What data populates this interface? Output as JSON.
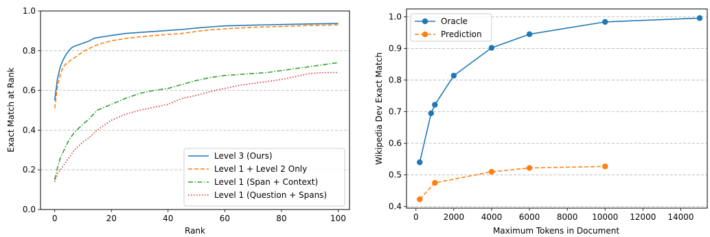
{
  "chart_data": [
    {
      "type": "line",
      "title": "",
      "xlabel": "Rank",
      "ylabel": "Exact Match at Rank",
      "xlim": [
        -5,
        104
      ],
      "ylim": [
        0.0,
        1.0
      ],
      "xticks": [
        0,
        20,
        40,
        60,
        80,
        100
      ],
      "yticks": [
        0.0,
        0.2,
        0.4,
        0.6,
        0.8,
        1.0
      ],
      "xtick_labels": [
        "0",
        "20",
        "40",
        "60",
        "80",
        "100"
      ],
      "ytick_labels": [
        "0.0",
        "0.2",
        "0.4",
        "0.6",
        "0.8",
        "1.0"
      ],
      "grid": "horizontal dashed",
      "legend_position": "lower-right",
      "series": [
        {
          "name": "Level 3 (Ours)",
          "color": "#1f77b4",
          "style": "solid",
          "x": [
            0,
            1,
            2,
            3,
            4,
            5,
            6,
            7,
            8,
            10,
            12,
            14,
            16,
            18,
            20,
            25,
            30,
            35,
            40,
            45,
            50,
            55,
            60,
            70,
            80,
            90,
            100
          ],
          "y": [
            0.55,
            0.66,
            0.72,
            0.755,
            0.78,
            0.8,
            0.815,
            0.823,
            0.828,
            0.838,
            0.848,
            0.863,
            0.868,
            0.872,
            0.877,
            0.887,
            0.892,
            0.897,
            0.902,
            0.907,
            0.914,
            0.92,
            0.925,
            0.929,
            0.932,
            0.935,
            0.937
          ]
        },
        {
          "name": "Level 1 + Level 2 Only",
          "color": "#ff7f0e",
          "style": "dashed",
          "x": [
            0,
            1,
            2,
            3,
            5,
            7,
            10,
            12,
            15,
            20,
            25,
            30,
            35,
            40,
            45,
            50,
            55,
            60,
            70,
            80,
            90,
            100
          ],
          "y": [
            0.51,
            0.62,
            0.68,
            0.72,
            0.745,
            0.765,
            0.795,
            0.81,
            0.83,
            0.85,
            0.862,
            0.87,
            0.876,
            0.882,
            0.887,
            0.897,
            0.905,
            0.91,
            0.918,
            0.922,
            0.927,
            0.93
          ]
        },
        {
          "name": "Level 1 (Span + Context)",
          "color": "#2ca02c",
          "style": "dashdot",
          "x": [
            0,
            1,
            2,
            3,
            5,
            7,
            10,
            12,
            15,
            20,
            25,
            30,
            35,
            40,
            45,
            50,
            55,
            60,
            65,
            70,
            75,
            80,
            85,
            90,
            95,
            100
          ],
          "y": [
            0.15,
            0.21,
            0.26,
            0.29,
            0.35,
            0.39,
            0.43,
            0.455,
            0.5,
            0.53,
            0.56,
            0.585,
            0.6,
            0.61,
            0.63,
            0.65,
            0.665,
            0.675,
            0.68,
            0.685,
            0.69,
            0.7,
            0.71,
            0.72,
            0.73,
            0.74
          ]
        },
        {
          "name": "Level 1 (Question + Spans)",
          "color": "#d62728",
          "style": "dotted",
          "x": [
            0,
            1,
            2,
            3,
            5,
            7,
            10,
            12,
            15,
            20,
            25,
            30,
            35,
            40,
            45,
            50,
            55,
            60,
            65,
            70,
            75,
            80,
            85,
            90,
            95,
            100
          ],
          "y": [
            0.14,
            0.18,
            0.2,
            0.22,
            0.26,
            0.3,
            0.34,
            0.36,
            0.4,
            0.45,
            0.48,
            0.5,
            0.515,
            0.53,
            0.56,
            0.575,
            0.595,
            0.61,
            0.625,
            0.635,
            0.645,
            0.655,
            0.67,
            0.685,
            0.69,
            0.69
          ]
        }
      ]
    },
    {
      "type": "line",
      "title": "",
      "xlabel": "Maximum Tokens in Document",
      "ylabel": "Wikipedia Dev Exact Match",
      "xlim": [
        -500,
        15400
      ],
      "ylim": [
        0.395,
        1.025
      ],
      "xticks": [
        0,
        2000,
        4000,
        6000,
        8000,
        10000,
        12000,
        14000
      ],
      "yticks": [
        0.4,
        0.5,
        0.6,
        0.7,
        0.8,
        0.9,
        1.0
      ],
      "xtick_labels": [
        "0",
        "2000",
        "4000",
        "6000",
        "8000",
        "10000",
        "12000",
        "14000"
      ],
      "ytick_labels": [
        "0.4",
        "0.5",
        "0.6",
        "0.7",
        "0.8",
        "0.9",
        "1.0"
      ],
      "grid": "horizontal dashed",
      "legend_position": "top-left",
      "series": [
        {
          "name": "Oracle",
          "color": "#1f77b4",
          "style": "solid",
          "marker": "circle",
          "x": [
            200,
            800,
            1000,
            2000,
            4000,
            6000,
            10000,
            15000
          ],
          "y": [
            0.54,
            0.695,
            0.722,
            0.814,
            0.902,
            0.945,
            0.984,
            0.996
          ]
        },
        {
          "name": "Prediction",
          "color": "#ff7f0e",
          "style": "dashed",
          "marker": "circle",
          "x": [
            200,
            1000,
            4000,
            6000,
            10000
          ],
          "y": [
            0.423,
            0.475,
            0.51,
            0.522,
            0.527
          ]
        }
      ]
    }
  ]
}
